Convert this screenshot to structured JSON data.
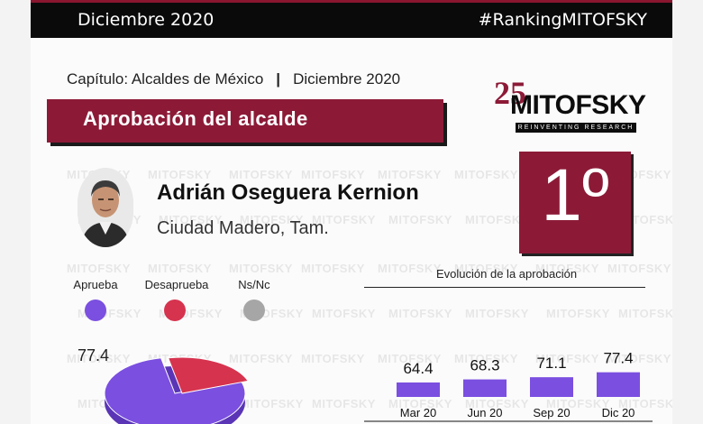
{
  "header": {
    "left": "Diciembre 2020",
    "right": "#RankingMITOFSKY"
  },
  "chapter": {
    "label": "Capítulo: Alcaldes de México",
    "separator": "|",
    "date": "Diciembre 2020"
  },
  "section_title": "Aprobación del alcalde",
  "brand": {
    "number": "25",
    "name": "MITOFSKY",
    "tagline": "REINVENTING RESEARCH"
  },
  "watermark": "MITOFSKY",
  "mayor": {
    "name": "Adrián Oseguera Kernion",
    "city": "Ciudad Madero, Tam."
  },
  "rank": "1º",
  "legend": [
    {
      "label": "Aprueba",
      "color": "#7b4fe0"
    },
    {
      "label": "Desaprueba",
      "color": "#d6334f"
    },
    {
      "label": "Ns/Nc",
      "color": "#a6a6a6"
    }
  ],
  "approval_label": "77.4",
  "colors": {
    "accent": "#8c1a37",
    "bar": "#7b4fe0",
    "dark": "#0a0a0a"
  },
  "chart_data": [
    {
      "type": "bar",
      "title": "Evolución de la aprobación",
      "categories": [
        "Mar 20",
        "Jun 20",
        "Sep 20",
        "Dic 20"
      ],
      "values": [
        64.4,
        68.3,
        71.1,
        77.4
      ],
      "xlabel": "",
      "ylabel": ""
    },
    {
      "type": "pie",
      "labels": [
        "Aprueba",
        "Desaprueba",
        "Ns/Nc"
      ],
      "values": [
        77.4,
        22.6,
        0
      ]
    }
  ]
}
